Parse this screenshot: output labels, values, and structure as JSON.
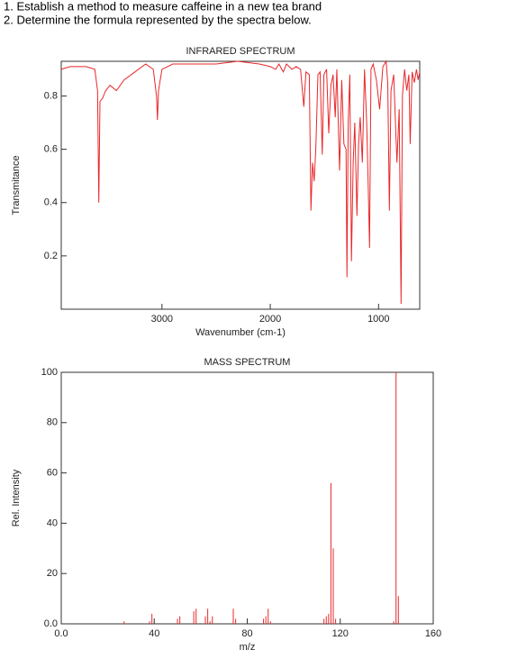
{
  "questions": [
    "1. Establish a method to measure caffeine in a new tea brand",
    "2. Determine the formula represented by the spectra below."
  ],
  "chart_data": [
    {
      "type": "line",
      "title": "INFRARED SPECTRUM",
      "x_label": "Wavenumber (cm-1)",
      "y_label": "Transmitance",
      "color": "#e8282b",
      "xlim": [
        3930,
        620
      ],
      "ylim": [
        0,
        0.93
      ],
      "xticks": [
        3000,
        2000,
        1000
      ],
      "yticks": [
        0.2,
        0.4,
        0.6,
        0.8
      ],
      "x": [
        3930,
        3850,
        3700,
        3620,
        3595,
        3583,
        3572,
        3550,
        3520,
        3480,
        3420,
        3350,
        3250,
        3150,
        3080,
        3050,
        3042,
        3032,
        3000,
        2900,
        2700,
        2500,
        2300,
        2100,
        2000,
        1950,
        1920,
        1880,
        1850,
        1800,
        1760,
        1720,
        1690,
        1670,
        1640,
        1625,
        1610,
        1595,
        1580,
        1560,
        1540,
        1520,
        1505,
        1480,
        1460,
        1440,
        1420,
        1400,
        1385,
        1360,
        1340,
        1320,
        1300,
        1292,
        1280,
        1265,
        1250,
        1235,
        1220,
        1200,
        1185,
        1170,
        1150,
        1130,
        1110,
        1095,
        1083,
        1070,
        1050,
        1020,
        990,
        960,
        930,
        915,
        900,
        885,
        860,
        830,
        810,
        792,
        780,
        760,
        740,
        720,
        708,
        690,
        670,
        650,
        635,
        620
      ],
      "values": [
        0.9,
        0.91,
        0.91,
        0.9,
        0.82,
        0.4,
        0.78,
        0.79,
        0.82,
        0.84,
        0.82,
        0.86,
        0.89,
        0.92,
        0.9,
        0.8,
        0.71,
        0.82,
        0.9,
        0.92,
        0.92,
        0.92,
        0.93,
        0.92,
        0.91,
        0.9,
        0.92,
        0.89,
        0.92,
        0.9,
        0.91,
        0.9,
        0.76,
        0.89,
        0.88,
        0.37,
        0.55,
        0.48,
        0.6,
        0.88,
        0.89,
        0.58,
        0.88,
        0.9,
        0.66,
        0.84,
        0.88,
        0.72,
        0.9,
        0.52,
        0.86,
        0.62,
        0.6,
        0.12,
        0.7,
        0.88,
        0.18,
        0.55,
        0.7,
        0.35,
        0.62,
        0.72,
        0.55,
        0.9,
        0.7,
        0.45,
        0.23,
        0.9,
        0.92,
        0.86,
        0.75,
        0.91,
        0.93,
        0.85,
        0.37,
        0.82,
        0.88,
        0.55,
        0.75,
        0.02,
        0.8,
        0.9,
        0.82,
        0.88,
        0.62,
        0.89,
        0.85,
        0.9,
        0.86,
        0.89
      ]
    },
    {
      "type": "bar",
      "title": "MASS SPECTRUM",
      "x_label": "m/z",
      "y_label": "Rel. Intensity",
      "color": "#e8282b",
      "xlim": [
        0,
        160
      ],
      "ylim": [
        0,
        100
      ],
      "xticks": [
        {
          "value": 0,
          "label": "0.0"
        },
        40,
        80,
        120,
        160
      ],
      "yticks": [
        {
          "value": 0,
          "label": "0.0"
        },
        20,
        40,
        60,
        80,
        100
      ],
      "x": [
        27,
        38,
        39,
        50,
        51,
        57,
        58,
        62,
        63,
        64,
        65,
        74,
        75,
        87,
        88,
        89,
        90,
        113,
        114,
        115,
        116,
        117,
        118,
        143,
        144,
        145
      ],
      "values": [
        1,
        1,
        4,
        2,
        3,
        5,
        6,
        3,
        6,
        1,
        3,
        6,
        2,
        2,
        3,
        6,
        1,
        2,
        3,
        4,
        56,
        30,
        2,
        1,
        100,
        11
      ]
    }
  ]
}
